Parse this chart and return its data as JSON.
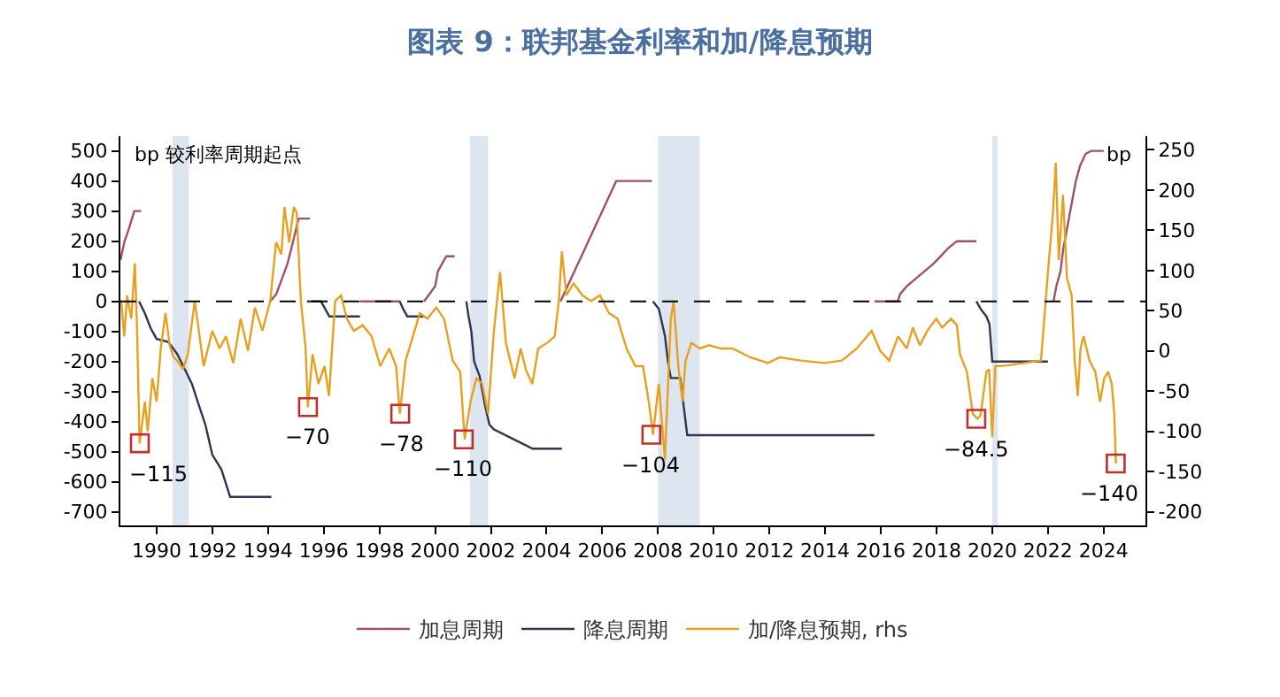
{
  "chart_data": {
    "type": "line",
    "title": "图表 9：联邦基金利率和加/降息预期",
    "xlim": [
      1988.7,
      2025.5
    ],
    "xticks": [
      1990,
      1992,
      1994,
      1996,
      1998,
      2000,
      2002,
      2004,
      2006,
      2008,
      2010,
      2012,
      2014,
      2016,
      2018,
      2020,
      2022,
      2024
    ],
    "ylim": [
      -745,
      549
    ],
    "yticks": [
      -700,
      -600,
      -500,
      -400,
      -300,
      -200,
      -100,
      0,
      100,
      200,
      300,
      400,
      500
    ],
    "y2lim": [
      -217,
      267
    ],
    "y2ticks": [
      -200,
      -150,
      -100,
      -50,
      0,
      50,
      100,
      150,
      200,
      250
    ],
    "grid": false,
    "legend": "bottom",
    "marker": "none",
    "line_style": "solid",
    "series": [
      {
        "name": "加息周期",
        "color": "#a0506a",
        "x": [
          1988.7,
          1988.85,
          1989.0,
          1989.2,
          1989.45,
          1992,
          1994.08,
          1994.3,
          1994.5,
          1994.7,
          1994.9,
          1995.1,
          1995.5,
          1996,
          1997.3,
          1998.75,
          1999,
          1999.6,
          1999.8,
          2000.0,
          2000.1,
          2000.4,
          2000.7,
          2002,
          2004.5,
          2005.0,
          2005.5,
          2006.0,
          2006.5,
          2007.78,
          2010,
          2015.77,
          2016.6,
          2016.7,
          2016.93,
          2017.25,
          2017.57,
          2017.89,
          2018.15,
          2018.4,
          2018.73,
          2019.43,
          2020,
          2022.2,
          2022.3,
          2022.45,
          2022.55,
          2022.7,
          2022.85,
          2023.0,
          2023.15,
          2023.35,
          2023.55,
          2024.0
        ],
        "values": [
          137,
          200,
          240,
          300,
          300,
          null,
          0,
          25,
          75,
          125,
          200,
          275,
          275,
          null,
          0,
          0,
          null,
          0,
          25,
          50,
          100,
          150,
          150,
          null,
          0,
          100,
          200,
          300,
          400,
          400,
          null,
          0,
          0,
          25,
          50,
          75,
          100,
          125,
          150,
          175,
          200,
          200,
          null,
          0,
          50,
          100,
          175,
          250,
          325,
          400,
          450,
          490,
          500,
          500
        ]
      },
      {
        "name": "降息周期",
        "color": "#2e3650",
        "x": [
          1989.37,
          1989.58,
          1989.79,
          1990.0,
          1990.42,
          1990.74,
          1991.06,
          1991.27,
          1991.48,
          1991.75,
          1992.0,
          1992.33,
          1992.64,
          1994.12,
          1994.5,
          1995.4,
          1995.9,
          1996.05,
          1996.2,
          1997.3,
          1998,
          1998.73,
          1998.85,
          1999.0,
          1999.6,
          2000.5,
          2001.12,
          2001.2,
          2001.3,
          2001.4,
          2001.6,
          2001.8,
          2001.95,
          2002.1,
          2002.85,
          2003.5,
          2004.55,
          2006,
          2007.82,
          2008.03,
          2008.25,
          2008.35,
          2008.46,
          2008.8,
          2008.95,
          2009.05,
          2015.77,
          2017,
          2019.43,
          2019.58,
          2019.79,
          2019.9,
          2020.0,
          2022.0
        ],
        "values": [
          0,
          -40,
          -90,
          -125,
          -135,
          -175,
          -235,
          -275,
          -335,
          -410,
          -510,
          -560,
          -650,
          -650,
          null,
          0,
          0,
          -25,
          -50,
          -50,
          null,
          0,
          -25,
          -50,
          -50,
          null,
          0,
          -50,
          -100,
          -200,
          -250,
          -350,
          -410,
          -425,
          -460,
          -490,
          -490,
          null,
          0,
          -25,
          -115,
          -195,
          -255,
          -255,
          -370,
          -445,
          -445,
          null,
          0,
          -25,
          -50,
          -75,
          -200,
          -200
        ]
      },
      {
        "name": "加/降息预期, rhs",
        "color": "#e8a020",
        "axis": "y2",
        "x": [
          1988.73,
          1988.84,
          1988.94,
          1989.09,
          1989.22,
          1989.3,
          1989.39,
          1989.58,
          1989.68,
          1989.85,
          1990.0,
          1990.15,
          1990.32,
          1990.47,
          1990.61,
          1990.74,
          1990.95,
          1991.12,
          1991.37,
          1991.69,
          1992.0,
          1992.26,
          1992.49,
          1992.75,
          1993.02,
          1993.28,
          1993.53,
          1993.8,
          1994.08,
          1994.29,
          1994.48,
          1994.59,
          1994.76,
          1994.93,
          1995.03,
          1995.18,
          1995.35,
          1995.43,
          1995.6,
          1995.81,
          1996.03,
          1996.19,
          1996.41,
          1996.62,
          1996.83,
          1997.08,
          1997.4,
          1997.72,
          1998.03,
          1998.35,
          1998.6,
          1998.73,
          1998.94,
          1999.2,
          1999.45,
          1999.72,
          2000.04,
          2000.32,
          2000.63,
          2000.9,
          2001.06,
          2001.27,
          2001.48,
          2001.69,
          2001.9,
          2002.11,
          2002.33,
          2002.54,
          2002.85,
          2003.07,
          2003.28,
          2003.49,
          2003.7,
          2004.02,
          2004.29,
          2004.44,
          2004.55,
          2004.71,
          2004.97,
          2005.29,
          2005.6,
          2005.92,
          2006.24,
          2006.55,
          2006.87,
          2007.19,
          2007.46,
          2007.67,
          2007.82,
          2008.03,
          2008.25,
          2008.46,
          2008.56,
          2008.73,
          2008.88,
          2008.99,
          2009.2,
          2009.51,
          2009.83,
          2010.25,
          2010.68,
          2011.31,
          2011.95,
          2012.37,
          2013.13,
          2013.97,
          2014.6,
          2015.14,
          2015.67,
          2015.98,
          2016.3,
          2016.62,
          2016.93,
          2017.15,
          2017.4,
          2017.67,
          2017.99,
          2018.2,
          2018.52,
          2018.73,
          2018.84,
          2019.09,
          2019.3,
          2019.47,
          2019.58,
          2019.79,
          2019.89,
          2020.0,
          2020.11,
          2020.53,
          2021.16,
          2021.75,
          2021.9,
          2022.0,
          2022.18,
          2022.28,
          2022.39,
          2022.54,
          2022.68,
          2022.85,
          2022.96,
          2023.07,
          2023.17,
          2023.28,
          2023.49,
          2023.7,
          2023.87,
          2024.02,
          2024.16,
          2024.29,
          2024.38,
          2024.44
        ],
        "values": [
          62,
          18,
          69,
          40,
          109,
          25,
          -115,
          -63,
          -100,
          -34,
          -63,
          3,
          47,
          7,
          -8,
          -12,
          -23,
          -4,
          62,
          -19,
          25,
          3,
          18,
          -15,
          40,
          0,
          54,
          25,
          62,
          135,
          120,
          179,
          135,
          179,
          172,
          62,
          3,
          -70,
          -4,
          -41,
          -19,
          -56,
          62,
          69,
          40,
          25,
          32,
          18,
          -19,
          3,
          -19,
          -78,
          -12,
          18,
          47,
          40,
          54,
          40,
          -12,
          -26,
          -110,
          -63,
          -34,
          -41,
          -78,
          25,
          98,
          10,
          -34,
          3,
          -26,
          -41,
          3,
          10,
          18,
          62,
          124,
          69,
          84,
          69,
          62,
          69,
          47,
          40,
          3,
          -19,
          -19,
          -63,
          -104,
          -41,
          -135,
          40,
          62,
          -19,
          -63,
          -12,
          10,
          3,
          7,
          3,
          3,
          -8,
          -15,
          -8,
          -12,
          -15,
          -12,
          3,
          25,
          0,
          -12,
          18,
          3,
          29,
          7,
          25,
          40,
          29,
          40,
          32,
          -4,
          -26,
          -78,
          -84.5,
          -80,
          -26,
          -23,
          -107,
          -19,
          -18,
          -15,
          -12,
          54,
          98,
          172,
          234,
          113,
          194,
          91,
          69,
          -12,
          -56,
          3,
          18,
          -12,
          -26,
          -63,
          -34,
          -26,
          -41,
          -78,
          -140
        ]
      }
    ],
    "ref_lines": [
      {
        "axis": "y",
        "value": 0,
        "color": "#000000",
        "line_style": "dashed"
      }
    ],
    "bands": [
      {
        "axis": "x",
        "from": 1990.57,
        "to": 1991.16,
        "color": "#dde6f0"
      },
      {
        "axis": "x",
        "from": 2001.25,
        "to": 2001.9,
        "color": "#dde6f0"
      },
      {
        "axis": "x",
        "from": 2008.0,
        "to": 2009.5,
        "color": "#dde6f0"
      },
      {
        "axis": "x",
        "from": 2020.0,
        "to": 2020.2,
        "color": "#dde6f0"
      }
    ],
    "annotations": [
      "bp 较利率周期起点",
      "bp",
      "−115",
      "−70",
      "−78",
      "−110",
      "−104",
      "−84.5",
      "−140"
    ]
  }
}
